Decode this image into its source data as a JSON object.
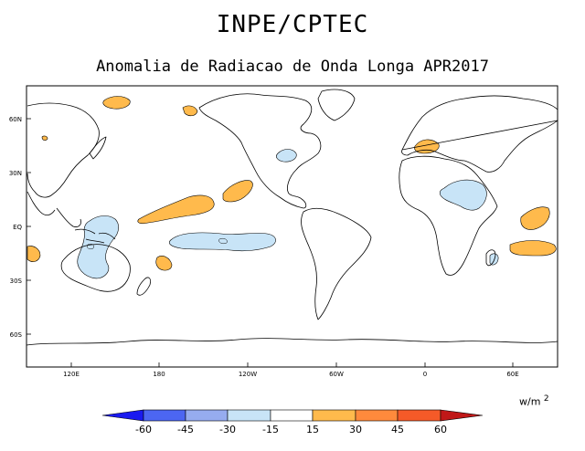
{
  "title": "INPE/CPTEC",
  "subtitle": "Anomalia de Radiacao de Onda Longa APR2017",
  "lat_ticks": [
    "60N",
    "30N",
    "EQ",
    "30S",
    "60S"
  ],
  "lon_ticks": [
    "120E",
    "180",
    "120W",
    "60W",
    "0",
    "60E"
  ],
  "units": {
    "base": "w/m",
    "exp": "2"
  },
  "colorbar": {
    "labels": [
      "-60",
      "-45",
      "-30",
      "-15",
      "15",
      "30",
      "45",
      "60"
    ],
    "colors": [
      "#1a1aef",
      "#4c66f2",
      "#96acef",
      "#c8e4f7",
      "#ffffff",
      "#ffba4c",
      "#ff8a3c",
      "#f55a28",
      "#c01818"
    ]
  },
  "map": {
    "negative_color": "#c8e4f7",
    "positive_color": "#ffba4c",
    "ocean_color": "#ffffff",
    "coast_color": "#000000"
  }
}
